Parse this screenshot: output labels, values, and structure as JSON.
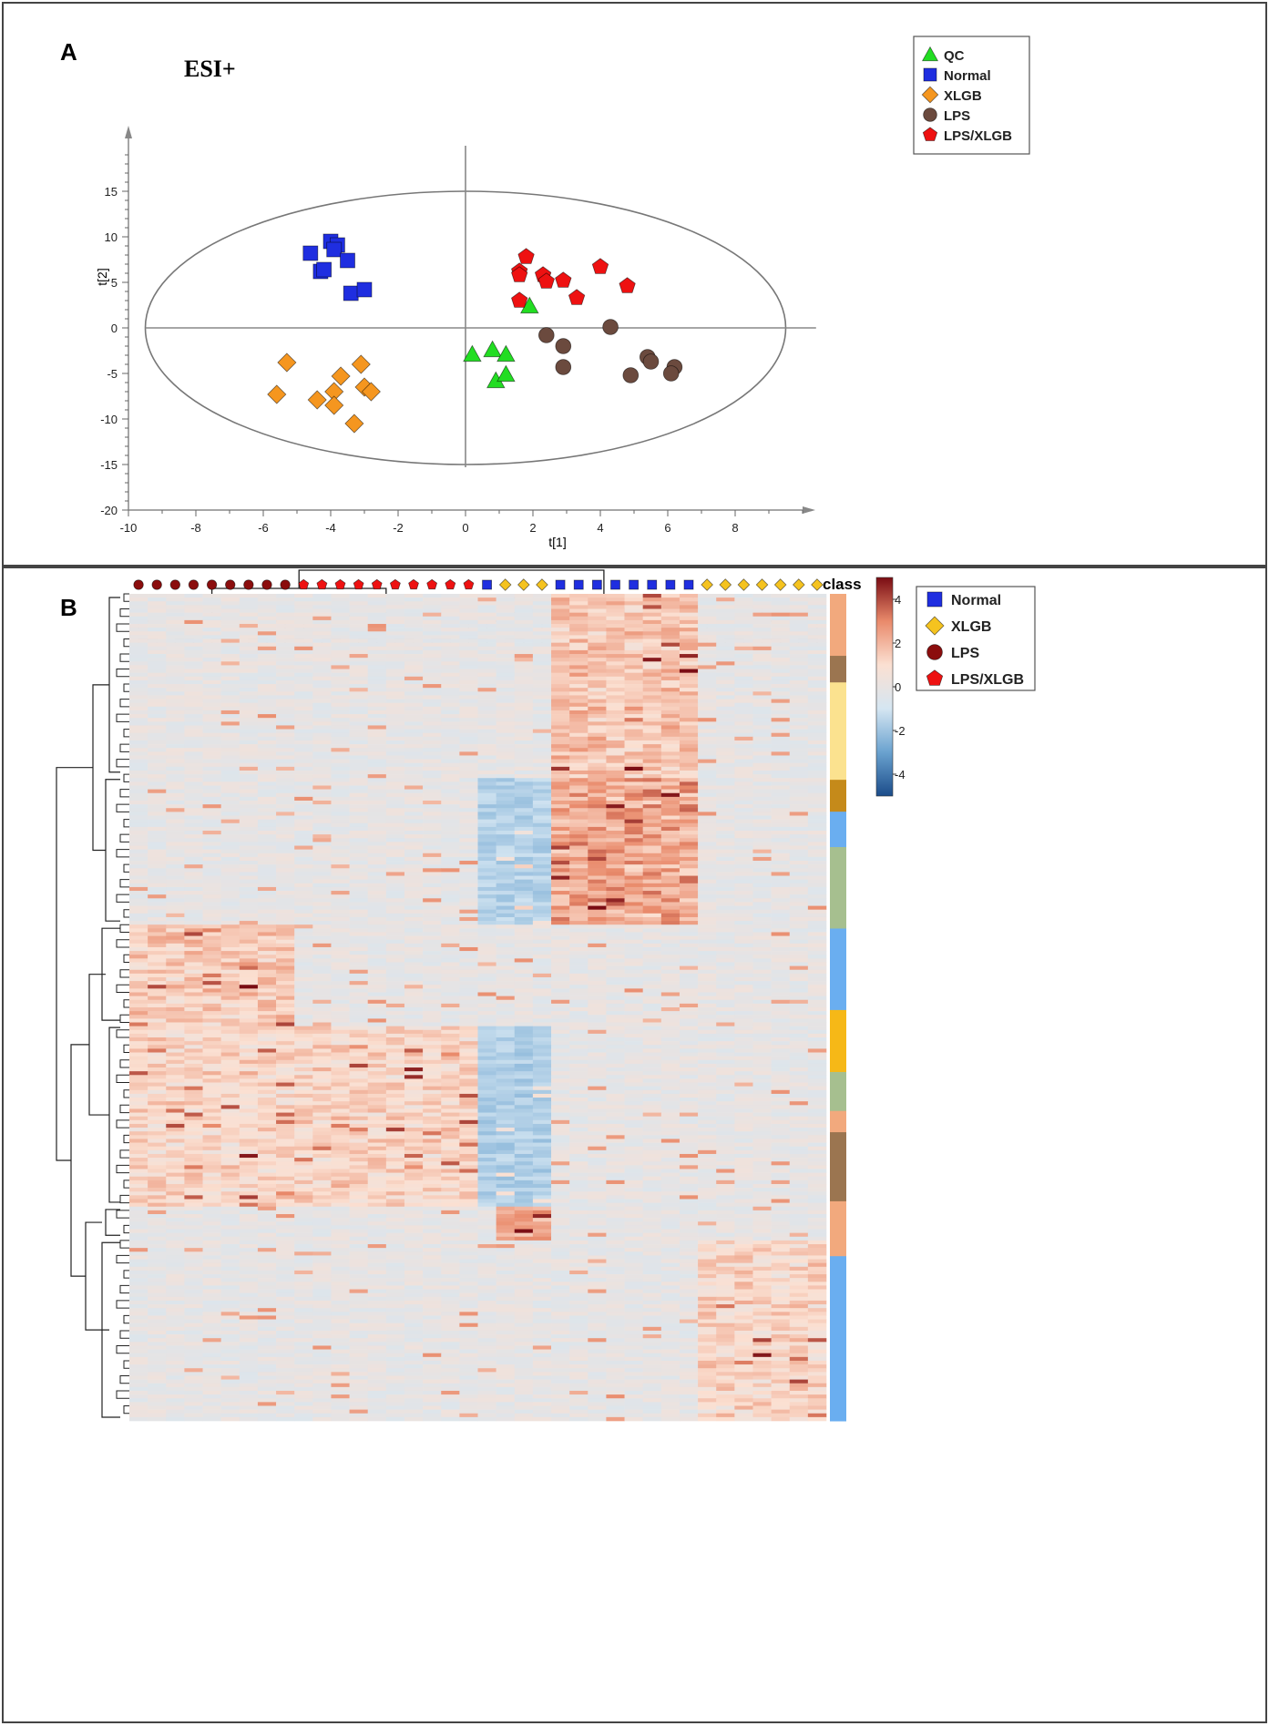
{
  "panels": {
    "a_label": "A",
    "b_label": "B"
  },
  "chart_data": [
    {
      "type": "scatter",
      "title": "ESI+",
      "xlabel": "t[1]",
      "ylabel": "t[2]",
      "xlim": [
        -10,
        10
      ],
      "ylim": [
        -20,
        20
      ],
      "xticks": [
        -10,
        -8,
        -6,
        -4,
        -2,
        0,
        2,
        4,
        6,
        8
      ],
      "yticks": [
        -20,
        -15,
        -10,
        -5,
        0,
        5,
        10,
        15
      ],
      "ellipse": {
        "center": [
          0,
          0
        ],
        "rx": 9.5,
        "ry": 15
      },
      "series": [
        {
          "name": "QC",
          "marker": "triangle",
          "color": "#22dd22",
          "points": [
            [
              0.2,
              -2.9
            ],
            [
              0.8,
              -2.4
            ],
            [
              1.2,
              -2.9
            ],
            [
              1.9,
              2.4
            ],
            [
              0.9,
              -5.8
            ],
            [
              1.2,
              -5.1
            ]
          ]
        },
        {
          "name": "Normal",
          "marker": "square",
          "color": "#1f2ee0",
          "points": [
            [
              -4.6,
              8.2
            ],
            [
              -4.0,
              9.5
            ],
            [
              -3.8,
              9.1
            ],
            [
              -3.9,
              8.6
            ],
            [
              -4.3,
              6.2
            ],
            [
              -3.5,
              7.4
            ],
            [
              -3.4,
              3.8
            ],
            [
              -3.0,
              4.2
            ],
            [
              -4.2,
              6.4
            ]
          ]
        },
        {
          "name": "XLGB",
          "marker": "diamond",
          "color": "#f5961f",
          "points": [
            [
              -5.3,
              -3.8
            ],
            [
              -5.6,
              -7.3
            ],
            [
              -4.4,
              -7.9
            ],
            [
              -3.9,
              -7.0
            ],
            [
              -3.7,
              -5.3
            ],
            [
              -3.1,
              -4.0
            ],
            [
              -3.0,
              -6.5
            ],
            [
              -2.8,
              -7.0
            ],
            [
              -3.9,
              -8.5
            ],
            [
              -3.3,
              -10.5
            ]
          ]
        },
        {
          "name": "LPS",
          "marker": "circle",
          "color": "#6b4a3e",
          "points": [
            [
              2.4,
              -0.8
            ],
            [
              2.9,
              -2.0
            ],
            [
              2.9,
              -4.3
            ],
            [
              4.3,
              0.1
            ],
            [
              5.4,
              -3.2
            ],
            [
              5.5,
              -3.7
            ],
            [
              4.9,
              -5.2
            ],
            [
              6.2,
              -4.3
            ],
            [
              6.1,
              -5.0
            ]
          ]
        },
        {
          "name": "LPS/XLGB",
          "marker": "pentagon",
          "color": "#ee1111",
          "points": [
            [
              1.8,
              7.8
            ],
            [
              1.6,
              6.2
            ],
            [
              1.6,
              5.8
            ],
            [
              2.3,
              5.8
            ],
            [
              2.4,
              5.1
            ],
            [
              2.9,
              5.2
            ],
            [
              4.0,
              6.7
            ],
            [
              4.8,
              4.6
            ],
            [
              1.6,
              3.0
            ],
            [
              3.3,
              3.3
            ]
          ]
        }
      ],
      "legend": [
        "QC",
        "Normal",
        "XLGB",
        "LPS",
        "LPS/XLGB"
      ]
    },
    {
      "type": "heatmap",
      "color_scale": {
        "min": -5,
        "max": 5,
        "ticks": [
          4,
          2,
          0,
          -2,
          -4
        ],
        "colors": [
          "#1b4c8a",
          "#6aa2cf",
          "#d5e6f2",
          "#fbe0d2",
          "#e98a6b",
          "#7a0c13"
        ]
      },
      "column_groups": [
        {
          "group": "LPS",
          "marker": "circle",
          "color": "#8b0d0d",
          "count": 9
        },
        {
          "group": "LPS/XLGB",
          "marker": "pentagon",
          "color": "#ee1111",
          "count": 10
        },
        {
          "group": "Normal",
          "marker": "square",
          "color": "#1f2ee0",
          "count": 1
        },
        {
          "group": "XLGB",
          "marker": "diamond",
          "color": "#f5c31f",
          "count": 3
        },
        {
          "group": "Normal",
          "marker": "square",
          "color": "#1f2ee0",
          "count": 8
        },
        {
          "group": "XLGB",
          "marker": "diamond",
          "color": "#f5c31f",
          "count": 7
        }
      ],
      "class_label": "class",
      "class_bar": [
        {
          "color": "#f2a97d",
          "weight": 3.5
        },
        {
          "color": "#9b7550",
          "weight": 1.5
        },
        {
          "color": "#fbe28f",
          "weight": 5.5
        },
        {
          "color": "#c58a1a",
          "weight": 1.8
        },
        {
          "color": "#6aaef0",
          "weight": 2.0
        },
        {
          "color": "#a6bf8f",
          "weight": 4.6
        },
        {
          "color": "#6aaef0",
          "weight": 4.6
        },
        {
          "color": "#f6b817",
          "weight": 3.5
        },
        {
          "color": "#a6bf8f",
          "weight": 2.2
        },
        {
          "color": "#f2a97d",
          "weight": 1.2
        },
        {
          "color": "#9b7550",
          "weight": 3.9
        },
        {
          "color": "#f2a97d",
          "weight": 3.1
        },
        {
          "color": "#6aaef0",
          "weight": 9.3
        }
      ],
      "legend": [
        {
          "name": "Normal",
          "marker": "square",
          "color": "#1f2ee0"
        },
        {
          "name": "XLGB",
          "marker": "diamond",
          "color": "#f5c31f"
        },
        {
          "name": "LPS",
          "marker": "circle",
          "color": "#8b0d0d"
        },
        {
          "name": "LPS/XLGB",
          "marker": "pentagon",
          "color": "#ee1111"
        }
      ]
    }
  ]
}
